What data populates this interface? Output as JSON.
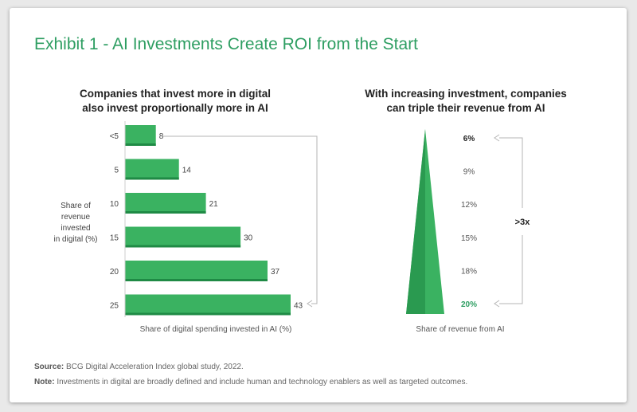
{
  "title": "Exhibit 1 - AI Investments Create ROI from the Start",
  "colors": {
    "accent": "#2e9e62",
    "bar": "#3ab261",
    "bar_dark": "#1f8a45"
  },
  "chart_data": [
    {
      "type": "bar",
      "orientation": "horizontal",
      "title_line1": "Companies that invest more in digital",
      "title_line2": "also invest proportionally more in AI",
      "categories": [
        "<5",
        "5",
        "10",
        "15",
        "20",
        "25"
      ],
      "values": [
        8,
        14,
        21,
        30,
        37,
        43
      ],
      "value_labels": [
        "8",
        "14",
        "21",
        "30",
        "37",
        "43"
      ],
      "ylabel_lines": [
        "Share of",
        "revenue",
        "invested",
        "in digital (%)"
      ],
      "xlabel": "Share of digital spending invested in AI (%)",
      "xlim": [
        0,
        45
      ]
    },
    {
      "type": "area",
      "shape": "triangle",
      "title_line1": "With increasing investment, companies",
      "title_line2": "can triple their revenue from AI",
      "levels": [
        "6%",
        "9%",
        "12%",
        "15%",
        "18%",
        "20%"
      ],
      "values": [
        6,
        9,
        12,
        15,
        18,
        20
      ],
      "annotation": ">3x",
      "xlabel": "Share of revenue from AI"
    }
  ],
  "source_label": "Source:",
  "source_text": "BCG Digital Acceleration Index global study, 2022.",
  "note_label": "Note:",
  "note_text": "Investments in digital are broadly defined and include human and technology enablers as well as targeted outcomes."
}
